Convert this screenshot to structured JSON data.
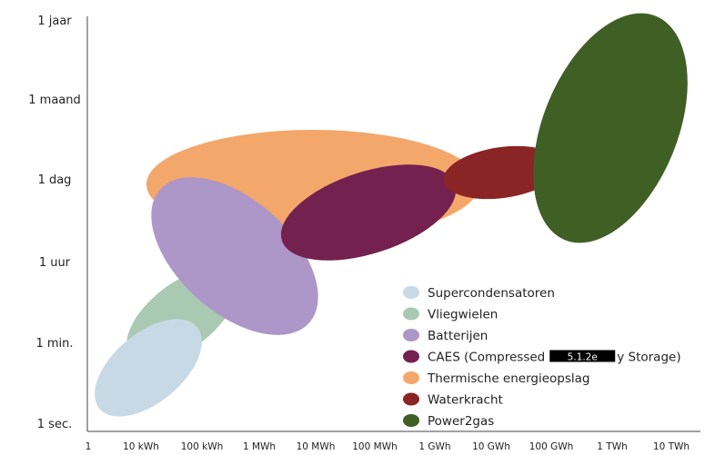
{
  "chart_data": {
    "type": "scatter",
    "title": "",
    "xlabel": "",
    "ylabel": "",
    "x_scale": "log",
    "y_scale": "log",
    "x_ticks": [
      "1",
      "10 kWh",
      "100 kWh",
      "1 MWh",
      "10 MWh",
      "100 MWh",
      "1 GWh",
      "10 GWh",
      "100 GWh",
      "1 TWh",
      "10 TWh"
    ],
    "y_ticks": [
      "1 sec.",
      "1 min.",
      "1 uur",
      "1 dag",
      "1 maand",
      "1 jaar"
    ],
    "legend_position": "bottom-right",
    "series": [
      {
        "name": "Supercondensatoren",
        "color": "#c8d9e6",
        "x_range": [
          "1",
          "100 kWh"
        ],
        "y_range": [
          "1 sec.",
          "1 min."
        ]
      },
      {
        "name": "Vliegwielen",
        "color": "#a9c9b3",
        "x_range": [
          "10 kWh",
          "1 MWh"
        ],
        "y_range": [
          "1 min.",
          "1 uur"
        ]
      },
      {
        "name": "Batterijen",
        "color": "#ad96c8",
        "x_range": [
          "10 kWh",
          "10 MWh"
        ],
        "y_range": [
          "1 uur",
          "1 dag"
        ]
      },
      {
        "name": "CAES (Compressed",
        "name_suffix": "y Storage)",
        "redaction_label": "5.1.2e",
        "color": "#74214f",
        "x_range": [
          "10 MWh",
          "1 GWh"
        ],
        "y_range": [
          "1 uur",
          "1 dag"
        ]
      },
      {
        "name": "Thermische energieopslag",
        "color": "#f4a76a",
        "x_range": [
          "10 kWh",
          "1 GWh"
        ],
        "y_range": [
          "1 uur",
          "1 maand"
        ]
      },
      {
        "name": "Waterkracht",
        "color": "#8b2424",
        "x_range": [
          "1 GWh",
          "100 GWh"
        ],
        "y_range": [
          "1 uur",
          "1 dag"
        ]
      },
      {
        "name": "Power2gas",
        "color": "#405f25",
        "x_range": [
          "100 GWh",
          "10 TWh"
        ],
        "y_range": [
          "1 uur",
          "1 jaar"
        ]
      }
    ]
  }
}
